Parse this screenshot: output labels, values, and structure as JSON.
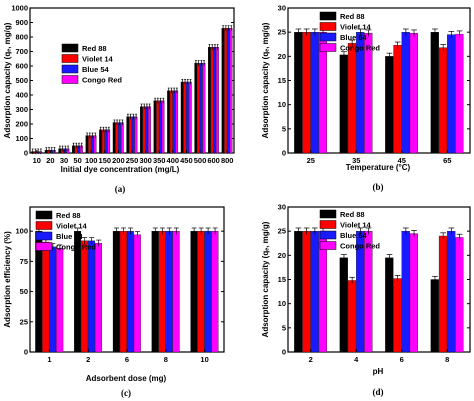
{
  "figure": {
    "series_colors": {
      "Red 88": "#000000",
      "Violet 14": "#ff0000",
      "Blue 54": "#1a1aff",
      "Congo Red": "#ff00ff"
    }
  },
  "chart_data": [
    {
      "panel": "a",
      "caption": "(a)",
      "type": "bar",
      "xlabel": "Initial dye concentration (mg/L)",
      "ylabel": "Adsorption capacity (qₑ, mg/g)",
      "ylim": [
        0,
        1000
      ],
      "yticks": [
        0,
        100,
        200,
        300,
        400,
        500,
        600,
        700,
        800,
        900,
        1000
      ],
      "categories": [
        "10",
        "20",
        "30",
        "50",
        "100",
        "150",
        "200",
        "250",
        "300",
        "350",
        "400",
        "450",
        "500",
        "600",
        "800"
      ],
      "legend_position": "top-left",
      "error_bars": true,
      "series": [
        {
          "name": "Red 88",
          "values": [
            10,
            20,
            30,
            50,
            120,
            160,
            210,
            250,
            320,
            360,
            430,
            490,
            620,
            730,
            860
          ]
        },
        {
          "name": "Violet 14",
          "values": [
            10,
            20,
            30,
            50,
            120,
            160,
            210,
            250,
            320,
            360,
            430,
            490,
            620,
            730,
            860
          ]
        },
        {
          "name": "Blue 54",
          "values": [
            10,
            20,
            30,
            50,
            120,
            160,
            210,
            250,
            320,
            360,
            430,
            490,
            620,
            730,
            860
          ]
        },
        {
          "name": "Congo Red",
          "values": [
            10,
            20,
            30,
            50,
            120,
            160,
            210,
            250,
            320,
            360,
            430,
            490,
            620,
            730,
            860
          ]
        }
      ]
    },
    {
      "panel": "b",
      "caption": "(b)",
      "type": "bar",
      "xlabel": "Temperature (°C)",
      "ylabel": "Adsorption capacity (qₑ, mg/g)",
      "ylim": [
        0,
        30
      ],
      "yticks": [
        0,
        5,
        10,
        15,
        20,
        25,
        30
      ],
      "categories": [
        "25",
        "35",
        "45",
        "65"
      ],
      "legend_position": "top-center",
      "error_bars": true,
      "series": [
        {
          "name": "Red 88",
          "values": [
            25,
            20.3,
            20,
            25
          ]
        },
        {
          "name": "Violet 14",
          "values": [
            25,
            22.7,
            22.3,
            21.8
          ]
        },
        {
          "name": "Blue 54",
          "values": [
            25,
            25,
            25,
            24.5
          ]
        },
        {
          "name": "Congo Red",
          "values": [
            25,
            24.8,
            24.8,
            24.6
          ]
        }
      ]
    },
    {
      "panel": "c",
      "caption": "(c)",
      "type": "bar",
      "xlabel": "Adsorbent dose (mg)",
      "ylabel": "Adsorption efficiency (%)",
      "ylim": [
        0,
        120
      ],
      "yticks": [
        0,
        25,
        50,
        75,
        100
      ],
      "categories": [
        "1",
        "2",
        "6",
        "8",
        "10"
      ],
      "legend_position": "top-left",
      "error_bars": true,
      "series": [
        {
          "name": "Red 88",
          "values": [
            100,
            100,
            100,
            100,
            100
          ]
        },
        {
          "name": "Violet 14",
          "values": [
            91,
            92,
            100,
            100,
            100
          ]
        },
        {
          "name": "Blue 54",
          "values": [
            87,
            92,
            100,
            100,
            100
          ]
        },
        {
          "name": "Congo Red",
          "values": [
            86,
            90,
            97,
            100,
            100
          ]
        }
      ]
    },
    {
      "panel": "d",
      "caption": "(d)",
      "type": "bar",
      "xlabel": "pH",
      "ylabel": "Adsorption capacity (qₑ, mg/g)",
      "ylim": [
        0,
        30
      ],
      "yticks": [
        0,
        5,
        10,
        15,
        20,
        25,
        30
      ],
      "categories": [
        "2",
        "4",
        "6",
        "8"
      ],
      "legend_position": "top-center",
      "error_bars": true,
      "series": [
        {
          "name": "Red 88",
          "values": [
            25,
            19.5,
            19.5,
            15
          ]
        },
        {
          "name": "Violet 14",
          "values": [
            25,
            14.8,
            15.2,
            24
          ]
        },
        {
          "name": "Blue 54",
          "values": [
            25,
            25,
            25,
            25
          ]
        },
        {
          "name": "Congo Red",
          "values": [
            25,
            25,
            24.5,
            23.7
          ]
        }
      ]
    }
  ]
}
